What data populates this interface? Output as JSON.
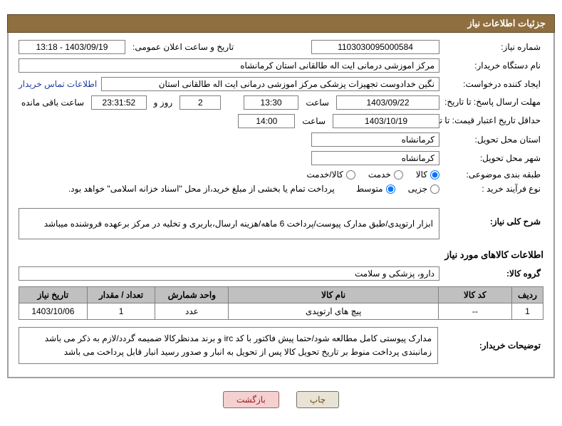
{
  "title_bar": "جزئیات اطلاعات نیاز",
  "labels": {
    "need_no": "شماره نیاز:",
    "pub_datetime": "تاریخ و ساعت اعلان عمومی:",
    "buyer_org": "نام دستگاه خریدار:",
    "request_creator": "ایجاد کننده درخواست:",
    "contact_link": "اطلاعات تماس خریدار",
    "deadline_resp": "مهلت ارسال پاسخ: تا تاریخ:",
    "time_word": "ساعت",
    "days_word": "روز و",
    "remaining": "ساعت باقی مانده",
    "min_validity": "حداقل تاریخ اعتبار قیمت: تا تاریخ:",
    "delivery_province": "استان محل تحویل:",
    "delivery_city": "شهر محل تحویل:",
    "category": "طبقه بندی موضوعی:",
    "purchase_type": "نوع فرآیند خرید :",
    "purchase_note": "پرداخت تمام یا بخشی از مبلغ خرید،از محل \"اسناد خزانه اسلامی\" خواهد بود.",
    "need_summary_lbl": "شرح کلی نیاز:",
    "items_heading": "اطلاعات کالاهای مورد نیاز",
    "item_group_lbl": "گروه کالا:",
    "buyer_notes_lbl": "توضیحات خریدار:",
    "btn_print": "چاپ",
    "btn_back": "بازگشت"
  },
  "values": {
    "need_no": "1103030095000584",
    "pub_datetime": "1403/09/19 - 13:18",
    "buyer_org": "مرکز اموزشی درمانی ایت اله طالقانی استان کرمانشاه",
    "request_creator": "نگین خدادوست تجهیزات پزشکی مرکز اموزشی درمانی ایت اله طالقانی استان",
    "deadline_date": "1403/09/22",
    "deadline_time": "13:30",
    "remaining_days": "2",
    "remaining_clock": "23:31:52",
    "validity_date": "1403/10/19",
    "validity_time": "14:00",
    "province": "کرمانشاه",
    "city": "کرمانشاه",
    "need_summary": "ابزار ارتوپدی/طبق مدارک پیوست/پرداخت 6 ماهه/هزینه ارسال،باربری و تخلیه در مرکز برعهده فروشنده میباشد",
    "item_group": "دارو، پزشکی و سلامت",
    "buyer_notes": "مدارک پیوستی کامل مطالعه شود/حتما پیش فاکتور با کد irc و برند مدنظرکالا ضمیمه گردد/لازم به ذکر می باشد زمانبندی پرداخت منوط بر تاریخ تحویل کالا  پس از تحویل به انبار و صدور رسید انبار قابل پرداخت می باشد"
  },
  "radios": {
    "category": [
      {
        "label": "کالا",
        "checked": true
      },
      {
        "label": "خدمت",
        "checked": false
      },
      {
        "label": "کالا/خدمت",
        "checked": false
      }
    ],
    "purchase": [
      {
        "label": "جزیی",
        "checked": false
      },
      {
        "label": "متوسط",
        "checked": true
      }
    ]
  },
  "table": {
    "headers": [
      "ردیف",
      "کد کالا",
      "نام کالا",
      "واحد شمارش",
      "تعداد / مقدار",
      "تاریخ نیاز"
    ],
    "rows": [
      {
        "idx": "1",
        "code": "--",
        "name": "پیچ های ارتوپدی",
        "unit": "عدد",
        "qty": "1",
        "date": "1403/10/06"
      }
    ]
  },
  "watermark_text": "AriaTender.net",
  "colors": {
    "title_bg": "#8f6f3f",
    "border": "#808080",
    "th_bg": "#c0c0c0"
  }
}
